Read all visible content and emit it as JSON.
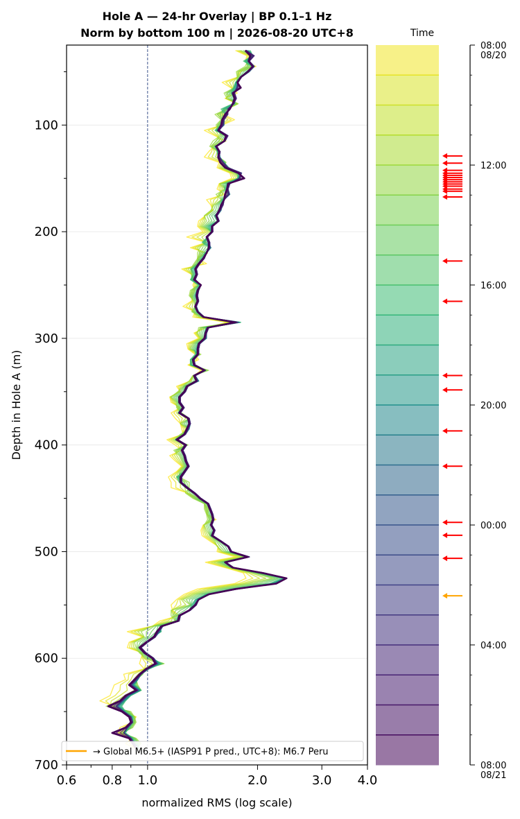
{
  "chart_data": {
    "type": "line",
    "title_line1": "Hole A — 24-hr Overlay  |  BP 0.1–1 Hz",
    "title_line2": "Norm by bottom 100 m  |  2026-08-20 UTC+8",
    "xlabel": "normalized RMS  (log scale)",
    "ylabel": "Depth in Hole A (m)",
    "x_scale": "log",
    "xlim": [
      0.6,
      4.0
    ],
    "ylim": [
      700,
      25
    ],
    "y_inverted": true,
    "x_ticks": [
      {
        "value": 0.6,
        "label": "0.6"
      },
      {
        "value": 0.8,
        "label": "0.8"
      },
      {
        "value": 1.0,
        "label": "1.0"
      },
      {
        "value": 2.0,
        "label": "2.0"
      },
      {
        "value": 3.0,
        "label": "3.0"
      },
      {
        "value": 4.0,
        "label": "4.0"
      }
    ],
    "y_ticks": [
      {
        "value": 100,
        "label": "100"
      },
      {
        "value": 200,
        "label": "200"
      },
      {
        "value": 300,
        "label": "300"
      },
      {
        "value": 400,
        "label": "400"
      },
      {
        "value": 500,
        "label": "500"
      },
      {
        "value": 600,
        "label": "600"
      },
      {
        "value": 700,
        "label": "700"
      }
    ],
    "reference_line_x": 1.0,
    "grid": true,
    "legend": {
      "placement": "lower-right",
      "label": "→ Global M6.5+ (IASP91 P pred., UTC+8): M6.7 Peru",
      "color": "#ffa500"
    },
    "depths": [
      30,
      35,
      40,
      45,
      50,
      55,
      60,
      65,
      70,
      75,
      80,
      85,
      90,
      95,
      100,
      105,
      110,
      115,
      120,
      125,
      130,
      135,
      140,
      145,
      150,
      155,
      160,
      165,
      170,
      175,
      180,
      185,
      190,
      195,
      200,
      205,
      210,
      215,
      220,
      225,
      230,
      235,
      240,
      245,
      250,
      255,
      260,
      265,
      270,
      275,
      280,
      285,
      290,
      295,
      300,
      305,
      310,
      315,
      320,
      325,
      330,
      335,
      340,
      345,
      350,
      355,
      360,
      365,
      370,
      375,
      380,
      385,
      390,
      395,
      400,
      405,
      410,
      415,
      420,
      425,
      430,
      435,
      440,
      445,
      450,
      455,
      460,
      465,
      470,
      475,
      480,
      485,
      490,
      495,
      500,
      505,
      510,
      515,
      520,
      525,
      530,
      535,
      540,
      545,
      550,
      555,
      560,
      565,
      570,
      575,
      580,
      585,
      590,
      595,
      600,
      605,
      610,
      615,
      620,
      625,
      630,
      635,
      640,
      645,
      650,
      655,
      660,
      665,
      670,
      675,
      680,
      685
    ],
    "series": [
      {
        "hour": "08:00",
        "values": [
          1.74,
          1.87,
          1.85,
          1.98,
          1.8,
          1.77,
          1.6,
          1.69,
          1.76,
          1.63,
          1.76,
          1.65,
          1.61,
          1.73,
          1.6,
          1.43,
          1.53,
          1.64,
          1.52,
          1.47,
          1.43,
          1.57,
          1.55,
          1.68,
          1.7,
          1.57,
          1.55,
          1.63,
          1.45,
          1.49,
          1.51,
          1.44,
          1.38,
          1.37,
          1.42,
          1.28,
          1.45,
          1.31,
          1.46,
          1.37,
          1.45,
          1.24,
          1.32,
          1.35,
          1.33,
          1.35,
          1.33,
          1.32,
          1.25,
          1.35,
          1.33,
          1.65,
          1.45,
          1.34,
          1.38,
          1.28,
          1.29,
          1.35,
          1.38,
          1.29,
          1.4,
          1.34,
          1.31,
          1.2,
          1.23,
          1.15,
          1.16,
          1.23,
          1.16,
          1.19,
          1.23,
          1.24,
          1.25,
          1.13,
          1.19,
          1.24,
          1.15,
          1.19,
          1.24,
          1.2,
          1.14,
          1.16,
          1.16,
          1.29,
          1.38,
          1.43,
          1.47,
          1.46,
          1.54,
          1.42,
          1.4,
          1.41,
          1.48,
          1.56,
          1.55,
          1.74,
          1.44,
          1.63,
          1.83,
          1.86,
          1.73,
          1.37,
          1.26,
          1.2,
          1.16,
          1.17,
          1.22,
          1.08,
          1.03,
          0.88,
          0.97,
          0.89,
          0.88,
          0.97,
          0.96,
          0.95,
          0.98,
          0.86,
          0.87,
          0.81,
          0.8,
          0.79,
          0.74,
          0.81,
          0.86,
          0.93,
          0.91,
          0.84,
          0.83,
          0.91,
          0.87,
          0.93
        ]
      },
      {
        "hour": "12:00",
        "values": [
          1.8,
          1.93,
          1.88,
          1.85,
          1.75,
          1.76,
          1.75,
          1.73,
          1.62,
          1.65,
          1.77,
          1.65,
          1.53,
          1.59,
          1.54,
          1.57,
          1.58,
          1.51,
          1.48,
          1.58,
          1.57,
          1.64,
          1.6,
          1.73,
          1.8,
          1.58,
          1.63,
          1.54,
          1.59,
          1.52,
          1.49,
          1.43,
          1.45,
          1.41,
          1.5,
          1.45,
          1.44,
          1.39,
          1.37,
          1.37,
          1.34,
          1.31,
          1.32,
          1.32,
          1.38,
          1.31,
          1.3,
          1.34,
          1.35,
          1.32,
          1.4,
          1.73,
          1.38,
          1.37,
          1.4,
          1.33,
          1.31,
          1.4,
          1.31,
          1.32,
          1.47,
          1.33,
          1.3,
          1.25,
          1.21,
          1.16,
          1.2,
          1.2,
          1.24,
          1.3,
          1.23,
          1.3,
          1.23,
          1.19,
          1.29,
          1.18,
          1.22,
          1.24,
          1.26,
          1.22,
          1.22,
          1.3,
          1.3,
          1.27,
          1.33,
          1.43,
          1.43,
          1.45,
          1.46,
          1.43,
          1.45,
          1.48,
          1.53,
          1.55,
          1.61,
          1.84,
          1.55,
          1.68,
          1.95,
          2.19,
          1.89,
          1.52,
          1.35,
          1.25,
          1.31,
          1.16,
          1.16,
          1.19,
          1.03,
          0.96,
          0.98,
          0.92,
          0.93,
          0.95,
          0.99,
          1.11,
          0.98,
          0.97,
          0.93,
          0.94,
          0.96,
          0.89,
          0.85,
          0.77,
          0.9,
          0.92,
          0.93,
          0.91,
          0.85,
          0.93,
          0.96,
          0.93
        ]
      },
      {
        "hour": "16:00",
        "values": [
          1.91,
          1.94,
          1.83,
          1.94,
          1.86,
          1.8,
          1.74,
          1.72,
          1.69,
          1.72,
          1.71,
          1.59,
          1.63,
          1.61,
          1.59,
          1.53,
          1.64,
          1.62,
          1.54,
          1.55,
          1.56,
          1.62,
          1.67,
          1.78,
          1.76,
          1.64,
          1.63,
          1.66,
          1.6,
          1.58,
          1.58,
          1.52,
          1.55,
          1.46,
          1.49,
          1.46,
          1.41,
          1.49,
          1.43,
          1.4,
          1.38,
          1.32,
          1.34,
          1.31,
          1.38,
          1.36,
          1.34,
          1.37,
          1.35,
          1.36,
          1.42,
          1.8,
          1.44,
          1.43,
          1.43,
          1.37,
          1.35,
          1.35,
          1.31,
          1.31,
          1.43,
          1.35,
          1.38,
          1.27,
          1.26,
          1.21,
          1.22,
          1.24,
          1.21,
          1.29,
          1.29,
          1.28,
          1.26,
          1.19,
          1.26,
          1.24,
          1.26,
          1.27,
          1.28,
          1.26,
          1.2,
          1.22,
          1.27,
          1.34,
          1.38,
          1.46,
          1.48,
          1.49,
          1.51,
          1.49,
          1.51,
          1.49,
          1.58,
          1.66,
          1.68,
          1.87,
          1.62,
          1.7,
          2.02,
          2.35,
          2.15,
          1.7,
          1.44,
          1.35,
          1.32,
          1.3,
          1.21,
          1.2,
          1.08,
          1.09,
          1.03,
          0.99,
          0.95,
          0.98,
          1.03,
          1.09,
          1.01,
          0.96,
          0.94,
          0.92,
          0.96,
          0.9,
          0.87,
          0.85,
          0.87,
          0.91,
          0.91,
          0.89,
          0.87,
          0.91,
          0.93,
          0.95
        ]
      },
      {
        "hour": "20:00",
        "values": [
          1.87,
          1.94,
          1.89,
          1.96,
          1.9,
          1.81,
          1.76,
          1.75,
          1.72,
          1.74,
          1.73,
          1.66,
          1.64,
          1.62,
          1.62,
          1.56,
          1.65,
          1.63,
          1.53,
          1.57,
          1.58,
          1.61,
          1.65,
          1.8,
          1.79,
          1.68,
          1.66,
          1.68,
          1.62,
          1.6,
          1.59,
          1.55,
          1.57,
          1.5,
          1.5,
          1.46,
          1.47,
          1.49,
          1.45,
          1.43,
          1.38,
          1.36,
          1.37,
          1.35,
          1.4,
          1.38,
          1.37,
          1.38,
          1.36,
          1.38,
          1.43,
          1.78,
          1.47,
          1.45,
          1.45,
          1.39,
          1.38,
          1.38,
          1.34,
          1.35,
          1.44,
          1.35,
          1.38,
          1.29,
          1.27,
          1.23,
          1.23,
          1.26,
          1.23,
          1.3,
          1.31,
          1.3,
          1.27,
          1.21,
          1.28,
          1.25,
          1.27,
          1.28,
          1.3,
          1.27,
          1.24,
          1.24,
          1.29,
          1.35,
          1.4,
          1.47,
          1.49,
          1.51,
          1.52,
          1.5,
          1.53,
          1.51,
          1.59,
          1.67,
          1.7,
          1.89,
          1.64,
          1.72,
          2.07,
          2.38,
          2.22,
          1.74,
          1.47,
          1.37,
          1.35,
          1.31,
          1.23,
          1.22,
          1.1,
          1.08,
          1.05,
          1.0,
          0.96,
          0.99,
          1.04,
          1.07,
          1.0,
          0.96,
          0.94,
          0.91,
          0.95,
          0.89,
          0.86,
          0.83,
          0.86,
          0.9,
          0.91,
          0.88,
          0.86,
          0.9,
          0.92,
          0.94
        ]
      },
      {
        "hour": "00:00",
        "values": [
          1.86,
          1.95,
          1.9,
          1.96,
          1.89,
          1.8,
          1.77,
          1.76,
          1.73,
          1.75,
          1.72,
          1.66,
          1.65,
          1.62,
          1.61,
          1.57,
          1.66,
          1.63,
          1.54,
          1.58,
          1.57,
          1.61,
          1.66,
          1.81,
          1.78,
          1.68,
          1.66,
          1.67,
          1.62,
          1.61,
          1.58,
          1.55,
          1.57,
          1.5,
          1.51,
          1.46,
          1.48,
          1.48,
          1.45,
          1.43,
          1.39,
          1.36,
          1.37,
          1.35,
          1.4,
          1.38,
          1.37,
          1.38,
          1.36,
          1.37,
          1.43,
          1.77,
          1.47,
          1.45,
          1.44,
          1.39,
          1.38,
          1.38,
          1.34,
          1.35,
          1.44,
          1.35,
          1.37,
          1.29,
          1.27,
          1.23,
          1.23,
          1.26,
          1.23,
          1.3,
          1.31,
          1.29,
          1.27,
          1.21,
          1.28,
          1.25,
          1.27,
          1.28,
          1.3,
          1.27,
          1.24,
          1.24,
          1.29,
          1.35,
          1.4,
          1.47,
          1.49,
          1.51,
          1.52,
          1.5,
          1.53,
          1.51,
          1.59,
          1.67,
          1.7,
          1.9,
          1.64,
          1.72,
          2.08,
          2.4,
          2.24,
          1.76,
          1.48,
          1.38,
          1.36,
          1.31,
          1.23,
          1.22,
          1.1,
          1.07,
          1.05,
          1.0,
          0.96,
          0.99,
          1.04,
          1.06,
          1.0,
          0.96,
          0.93,
          0.9,
          0.94,
          0.88,
          0.85,
          0.82,
          0.86,
          0.9,
          0.91,
          0.88,
          0.86,
          0.9,
          0.92,
          0.94
        ]
      },
      {
        "hour": "04:00",
        "values": [
          1.86,
          1.96,
          1.9,
          1.95,
          1.89,
          1.81,
          1.77,
          1.76,
          1.73,
          1.75,
          1.72,
          1.66,
          1.66,
          1.62,
          1.61,
          1.57,
          1.66,
          1.63,
          1.55,
          1.58,
          1.57,
          1.61,
          1.66,
          1.8,
          1.78,
          1.68,
          1.66,
          1.67,
          1.62,
          1.61,
          1.58,
          1.55,
          1.57,
          1.51,
          1.51,
          1.46,
          1.48,
          1.48,
          1.45,
          1.43,
          1.39,
          1.36,
          1.37,
          1.35,
          1.4,
          1.38,
          1.37,
          1.38,
          1.36,
          1.37,
          1.43,
          1.76,
          1.47,
          1.45,
          1.44,
          1.39,
          1.38,
          1.38,
          1.34,
          1.35,
          1.44,
          1.35,
          1.37,
          1.29,
          1.27,
          1.23,
          1.23,
          1.26,
          1.23,
          1.3,
          1.31,
          1.29,
          1.27,
          1.21,
          1.28,
          1.25,
          1.27,
          1.28,
          1.3,
          1.27,
          1.24,
          1.24,
          1.29,
          1.35,
          1.4,
          1.47,
          1.49,
          1.51,
          1.52,
          1.5,
          1.53,
          1.51,
          1.59,
          1.67,
          1.7,
          1.9,
          1.64,
          1.72,
          2.09,
          2.41,
          2.25,
          1.77,
          1.48,
          1.38,
          1.36,
          1.31,
          1.23,
          1.22,
          1.1,
          1.07,
          1.05,
          1.0,
          0.96,
          0.99,
          1.04,
          1.06,
          1.0,
          0.96,
          0.93,
          0.9,
          0.94,
          0.88,
          0.85,
          0.82,
          0.86,
          0.9,
          0.91,
          0.88,
          0.86,
          0.9,
          0.92,
          0.94
        ]
      },
      {
        "hour": "07:00",
        "values": [
          1.85,
          1.91,
          1.89,
          1.94,
          1.88,
          1.8,
          1.76,
          1.8,
          1.71,
          1.73,
          1.71,
          1.68,
          1.63,
          1.6,
          1.59,
          1.56,
          1.64,
          1.62,
          1.54,
          1.57,
          1.56,
          1.58,
          1.63,
          1.77,
          1.84,
          1.66,
          1.65,
          1.63,
          1.62,
          1.59,
          1.57,
          1.54,
          1.56,
          1.5,
          1.5,
          1.45,
          1.47,
          1.47,
          1.45,
          1.42,
          1.38,
          1.35,
          1.36,
          1.34,
          1.4,
          1.37,
          1.36,
          1.37,
          1.35,
          1.37,
          1.42,
          1.74,
          1.46,
          1.44,
          1.43,
          1.38,
          1.37,
          1.37,
          1.33,
          1.34,
          1.43,
          1.34,
          1.36,
          1.28,
          1.26,
          1.22,
          1.22,
          1.25,
          1.22,
          1.29,
          1.3,
          1.28,
          1.26,
          1.2,
          1.27,
          1.24,
          1.26,
          1.27,
          1.29,
          1.26,
          1.23,
          1.23,
          1.28,
          1.34,
          1.39,
          1.46,
          1.48,
          1.5,
          1.51,
          1.49,
          1.52,
          1.5,
          1.58,
          1.66,
          1.69,
          1.88,
          1.63,
          1.71,
          2.06,
          2.4,
          2.25,
          1.74,
          1.47,
          1.38,
          1.35,
          1.3,
          1.22,
          1.21,
          1.09,
          1.06,
          1.04,
          0.99,
          0.95,
          0.98,
          1.03,
          1.05,
          0.99,
          0.95,
          0.92,
          0.89,
          0.93,
          0.87,
          0.84,
          0.78,
          0.85,
          0.89,
          0.9,
          0.87,
          0.8,
          0.89,
          0.91,
          0.93
        ]
      }
    ]
  },
  "colorbar": {
    "title": "Time",
    "tick_labels": [
      {
        "line1": "08:00",
        "line2": "08/20",
        "frac": 0.0
      },
      {
        "line1": "12:00",
        "line2": "",
        "frac": 0.1667
      },
      {
        "line1": "16:00",
        "line2": "",
        "frac": 0.3333
      },
      {
        "line1": "20:00",
        "line2": "",
        "frac": 0.5
      },
      {
        "line1": "00:00",
        "line2": "",
        "frac": 0.6667
      },
      {
        "line1": "04:00",
        "line2": "",
        "frac": 0.8333
      },
      {
        "line1": "08:00",
        "line2": "08/21",
        "frac": 1.0
      }
    ],
    "band_count": 24
  },
  "event_markers": {
    "red_fracs": [
      0.154,
      0.164,
      0.174,
      0.178,
      0.181,
      0.184,
      0.187,
      0.19,
      0.193,
      0.196,
      0.2,
      0.203,
      0.211,
      0.3,
      0.356,
      0.459,
      0.479,
      0.536,
      0.585,
      0.663,
      0.681,
      0.713
    ],
    "red_color": "#ff0000",
    "orange_fracs": [
      0.765
    ],
    "orange_color": "#ffa500"
  }
}
